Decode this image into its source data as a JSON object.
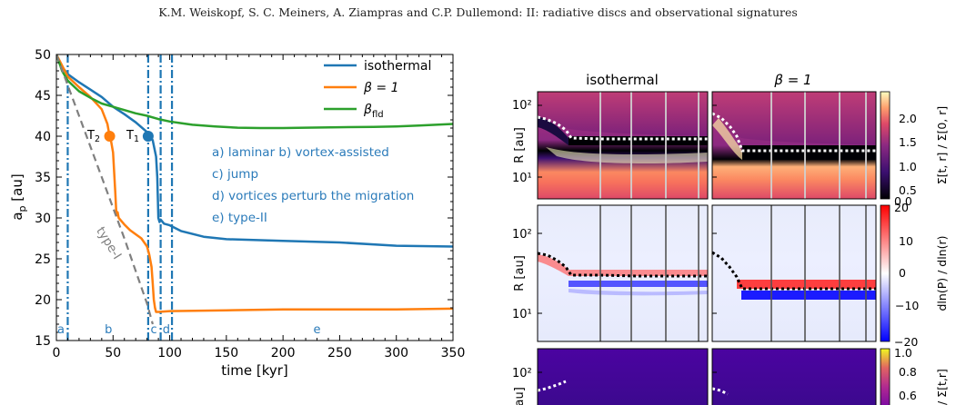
{
  "running_head": "K.M. Weiskopf, S. C. Meiners, A. Ziampras and C.P. Dullemond: II: radiative discs and observational signatures",
  "colors": {
    "isothermal": "#1f77b4",
    "beta1": "#ff7f0e",
    "betafld": "#2ca02c",
    "typeI": "#7f7f7f",
    "phase": "#1f77b4",
    "annotation": "#2b7bba"
  },
  "chart_data": [
    {
      "type": "line",
      "xlabel": "time [kyr]",
      "ylabel_main": "a",
      "ylabel_sub": "p",
      "ylabel_unit": " [au]",
      "xlim": [
        0,
        350
      ],
      "ylim": [
        15,
        50
      ],
      "xticks": [
        0,
        50,
        100,
        150,
        200,
        250,
        300,
        350
      ],
      "yticks": [
        15,
        20,
        25,
        30,
        35,
        40,
        45,
        50
      ],
      "legend_position": "top-right",
      "legend": [
        {
          "name": "isothermal",
          "color": "#1f77b4"
        },
        {
          "name": "β = 1",
          "color": "#ff7f0e"
        },
        {
          "name": "βfld",
          "main": "β",
          "sub": "fld",
          "color": "#2ca02c"
        }
      ],
      "series": [
        {
          "name": "isothermal",
          "color": "#1f77b4",
          "x": [
            0,
            5,
            10,
            20,
            30,
            40,
            50,
            60,
            70,
            80,
            85,
            88,
            89,
            90,
            91,
            92,
            95,
            100,
            110,
            130,
            150,
            200,
            250,
            300,
            350
          ],
          "y": [
            50,
            48.5,
            47.6,
            46.6,
            45.7,
            44.8,
            43.6,
            42.7,
            41.7,
            40.5,
            39.5,
            37.5,
            35,
            30,
            29.5,
            29.8,
            29.3,
            29.1,
            28.4,
            27.7,
            27.4,
            27.2,
            27,
            26.6,
            26.5
          ]
        },
        {
          "name": "β = 1",
          "color": "#ff7f0e",
          "x": [
            0,
            10,
            20,
            30,
            40,
            45,
            47,
            48,
            50,
            52,
            53,
            54,
            55,
            60,
            65,
            70,
            75,
            80,
            82,
            84,
            85,
            86,
            87,
            88,
            90,
            100,
            150,
            200,
            250,
            300,
            350
          ],
          "y": [
            50,
            47.3,
            46,
            44.8,
            43.3,
            41.5,
            40,
            39.6,
            38,
            33,
            30.3,
            30.7,
            30,
            29.2,
            28.5,
            28,
            27.5,
            26.5,
            25.5,
            24,
            22,
            20,
            19,
            18.5,
            18.5,
            18.6,
            18.7,
            18.8,
            18.8,
            18.8,
            18.9
          ]
        },
        {
          "name": "βfld",
          "color": "#2ca02c",
          "x": [
            0,
            5,
            10,
            20,
            30,
            40,
            50,
            60,
            70,
            80,
            90,
            100,
            110,
            120,
            140,
            160,
            180,
            200,
            220,
            250,
            280,
            300,
            320,
            350
          ],
          "y": [
            50,
            48,
            46.8,
            45.5,
            44.7,
            44,
            43.6,
            43.2,
            42.8,
            42.5,
            42.1,
            41.8,
            41.6,
            41.4,
            41.2,
            41.05,
            41,
            41,
            41.05,
            41.1,
            41.15,
            41.2,
            41.3,
            41.5
          ]
        },
        {
          "name": "type-I",
          "color": "#7f7f7f",
          "dashed": true,
          "x": [
            0,
            20,
            40,
            60,
            70,
            80,
            85
          ],
          "y": [
            50,
            42.5,
            35,
            27.5,
            23.5,
            19.5,
            17
          ]
        }
      ],
      "typeI_label": "type-I",
      "points": [
        {
          "label": "T₂",
          "main": "T",
          "sub": "2",
          "x": 47,
          "y": 40,
          "color": "#ff7f0e"
        },
        {
          "label": "T₁",
          "main": "T",
          "sub": "1",
          "x": 81,
          "y": 40,
          "color": "#1f77b4"
        }
      ],
      "phase_lines": [
        10,
        81,
        92,
        102
      ],
      "phase_labels": [
        {
          "text": "a",
          "x": 4
        },
        {
          "text": "b",
          "x": 46
        },
        {
          "text": "c",
          "x": 86
        },
        {
          "text": "d",
          "x": 97
        },
        {
          "text": "e",
          "x": 230
        }
      ],
      "phase_descriptions": [
        "a) laminar b) vortex-assisted",
        "c) jump",
        "d) vortices perturb the migration",
        "e) type-II"
      ]
    },
    {
      "type": "heatmap",
      "column_titles": [
        "isothermal",
        "β = 1"
      ],
      "row_ylabel": "R [au]",
      "yticks": [
        "10²",
        "10¹"
      ],
      "colorbars": [
        {
          "label": "Σ[t, r] / Σ[0, r]",
          "ticks": [
            "2.0",
            "1.5",
            "1.0",
            "0.5",
            "0.0"
          ],
          "range": [
            0,
            2.2
          ]
        },
        {
          "label": "dln(P) / dln(r)",
          "ticks": [
            "20",
            "10",
            "0",
            "−10",
            "−20"
          ],
          "range": [
            -20,
            20
          ]
        },
        {
          "label": "/ Σ[t,r]",
          "ticks": [
            "1.0",
            "0.8",
            "0.6"
          ],
          "range": [
            0.5,
            1.0
          ]
        }
      ]
    }
  ]
}
